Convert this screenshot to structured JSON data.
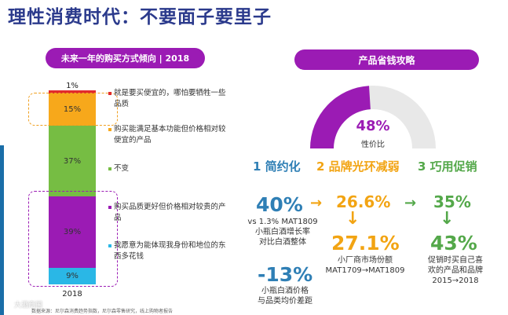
{
  "title": "理性消费时代：不要面子要里子",
  "left_panel": {
    "header": "未来一年的购买方式倾向 | 2018",
    "bar": {
      "year": "2018",
      "segments": [
        {
          "label": "1%",
          "value": 1,
          "color": "#e12b2b"
        },
        {
          "label": "15%",
          "value": 15,
          "color": "#f7a81b"
        },
        {
          "label": "37%",
          "value": 37,
          "color": "#76bd43"
        },
        {
          "label": "39%",
          "value": 39,
          "color": "#9b1bb4"
        },
        {
          "label": "9%",
          "value": 9,
          "color": "#2ab7e6"
        }
      ]
    },
    "legend": [
      {
        "text": "就是要买便宜的，哪怕要牺牲一些品质",
        "color": "#e12b2b"
      },
      {
        "text": "购买能满足基本功能但价格相对较便宜的产品",
        "color": "#f7a81b"
      },
      {
        "text": "不变",
        "color": "#76bd43"
      },
      {
        "text": "购买品质更好但价格相对较贵的产品",
        "color": "#9b1bb4"
      },
      {
        "text": "我愿意为能体现我身份和地位的东西多花钱",
        "color": "#2ab7e6"
      }
    ],
    "footer": "数据来源：尼尔森消费趋势指数，尼尔森零售研究，线上购物者报告",
    "watermark": "大酒商国"
  },
  "right_panel": {
    "header": "产品省钱攻略",
    "gauge": {
      "value": 48,
      "label": "48%",
      "sublabel": "性价比"
    },
    "columns": [
      {
        "num": "1",
        "title": "简约化"
      },
      {
        "num": "2",
        "title": "品牌光环减弱"
      },
      {
        "num": "3",
        "title": "巧用促销"
      }
    ],
    "col1": {
      "stat1": "40%",
      "stat1_text": "vs 1.3% MAT1809",
      "stat1_line2": "小瓶白酒增长率",
      "stat1_line3": "对比白酒整体",
      "stat2": "-13%",
      "stat2_line1": "小瓶白酒价格",
      "stat2_line2": "与品类均价差距"
    },
    "col2": {
      "from": "26.6%",
      "to": "27.1%",
      "line1": "小厂商市场份额",
      "line2": "MAT1709→MAT1809"
    },
    "col3": {
      "from": "35%",
      "to": "43%",
      "line1": "促销时买自己喜",
      "line2": "欢的产品和品牌",
      "line3": "2015→2018"
    },
    "colors": {
      "blue": "#2f7fb5",
      "orange": "#f2a413",
      "green": "#54a84a",
      "purple": "#9b1bb4"
    }
  }
}
